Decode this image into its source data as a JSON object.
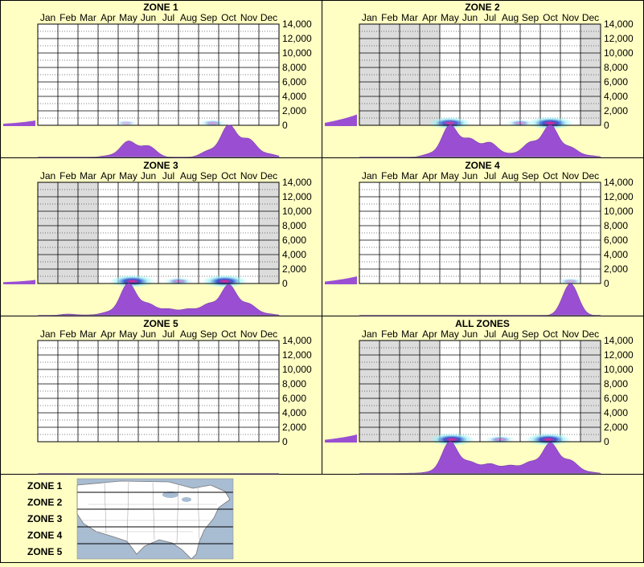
{
  "months": [
    "Jan",
    "Feb",
    "Mar",
    "Apr",
    "May",
    "Jun",
    "Jul",
    "Aug",
    "Sep",
    "Oct",
    "Nov",
    "Dec"
  ],
  "yticks": [
    "0",
    "2,000",
    "4,000",
    "6,000",
    "8,000",
    "10,000",
    "12,000",
    "14,000"
  ],
  "colors": {
    "background": "#ffffc4",
    "density": "#9a4fd3",
    "heat_low": "#9ff4f4",
    "heat_mid": "#2c52d0",
    "heat_high": "#ff1a8c",
    "shade": "#dcdcdc"
  },
  "chart_data": [
    {
      "type": "heatmap",
      "title": "ZONE 1",
      "ylim": [
        0,
        14000
      ],
      "shaded_months": [],
      "hotspots": [
        {
          "month": 4.9,
          "elev": 300,
          "intensity": 0.15
        },
        {
          "month": 9.2,
          "elev": 300,
          "intensity": 0.3
        }
      ],
      "month_density": [
        0,
        0,
        0,
        0.05,
        0.5,
        0.35,
        0,
        0,
        0.2,
        1,
        0.55,
        0.1
      ],
      "elev_density": 0.2
    },
    {
      "type": "heatmap",
      "title": "ZONE 2",
      "ylim": [
        0,
        14000
      ],
      "shaded_months": [
        1,
        2,
        3,
        4,
        12
      ],
      "hotspots": [
        {
          "month": 5.0,
          "elev": 300,
          "intensity": 0.9
        },
        {
          "month": 8.5,
          "elev": 300,
          "intensity": 0.35
        },
        {
          "month": 10.0,
          "elev": 300,
          "intensity": 1
        }
      ],
      "month_density": [
        0,
        0,
        0,
        0.1,
        1,
        0.55,
        0.45,
        0.1,
        0.45,
        1,
        0.3,
        0.05
      ],
      "elev_density": 0.45
    },
    {
      "type": "heatmap",
      "title": "ZONE 3",
      "ylim": [
        0,
        14000
      ],
      "shaded_months": [
        1,
        2,
        3,
        12
      ],
      "hotspots": [
        {
          "month": 5.2,
          "elev": 300,
          "intensity": 1
        },
        {
          "month": 7.5,
          "elev": 300,
          "intensity": 0.4
        },
        {
          "month": 9.8,
          "elev": 300,
          "intensity": 1
        }
      ],
      "month_density": [
        0,
        0.05,
        0.02,
        0.1,
        1,
        0.35,
        0.2,
        0.2,
        0.35,
        0.95,
        0.35,
        0.05
      ],
      "elev_density": 0.15
    },
    {
      "type": "heatmap",
      "title": "ZONE 4",
      "ylim": [
        0,
        14000
      ],
      "shaded_months": [],
      "hotspots": [
        {
          "month": 11.0,
          "elev": 300,
          "intensity": 0.25
        }
      ],
      "month_density": [
        0,
        0,
        0,
        0,
        0,
        0,
        0,
        0,
        0,
        0,
        1,
        0
      ],
      "elev_density": 0.3
    },
    {
      "type": "heatmap",
      "title": "ZONE 5",
      "ylim": [
        0,
        14000
      ],
      "shaded_months": [],
      "hotspots": [],
      "month_density": [
        0,
        0,
        0,
        0,
        0,
        0,
        0,
        0,
        0,
        0,
        0,
        0
      ],
      "elev_density": 0
    },
    {
      "type": "heatmap",
      "title": "ALL ZONES",
      "ylim": [
        0,
        14000
      ],
      "shaded_months": [
        1,
        2,
        3,
        4,
        12
      ],
      "hotspots": [
        {
          "month": 5.1,
          "elev": 300,
          "intensity": 1
        },
        {
          "month": 7.5,
          "elev": 300,
          "intensity": 0.4
        },
        {
          "month": 9.9,
          "elev": 300,
          "intensity": 1
        }
      ],
      "month_density": [
        0,
        0,
        0.02,
        0.05,
        1,
        0.35,
        0.3,
        0.25,
        0.35,
        0.95,
        0.4,
        0.05
      ],
      "elev_density": 0.3
    }
  ],
  "legend": {
    "zones": [
      "ZONE 1",
      "ZONE 2",
      "ZONE 3",
      "ZONE 4",
      "ZONE 5"
    ],
    "map": "us-map"
  }
}
